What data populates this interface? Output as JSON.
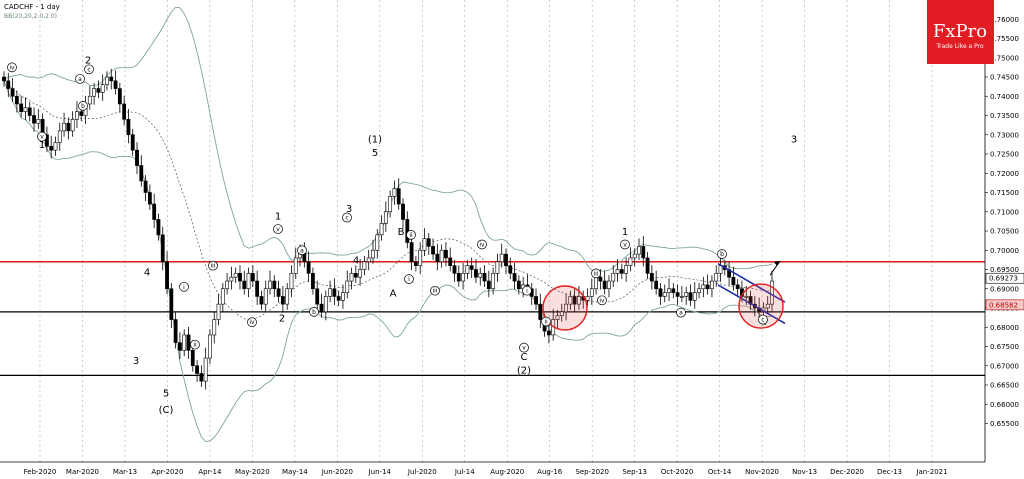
{
  "chart_data": {
    "type": "candlestick",
    "title": "CADCHF - 1 day",
    "indicator_label": "BB(20,20,2.0,2.0)",
    "y_range": [
      0.645,
      0.765
    ],
    "y_ticks": [
      "0.76000",
      "0.75500",
      "0.75000",
      "0.74500",
      "0.74000",
      "0.73500",
      "0.73000",
      "0.72500",
      "0.72000",
      "0.71500",
      "0.71000",
      "0.70500",
      "0.70000",
      "0.69500",
      "0.69000",
      "0.68500",
      "0.68000",
      "0.67500",
      "0.67000",
      "0.66500",
      "0.66000",
      "0.65500"
    ],
    "x_labels": [
      "Feb-2020",
      "Mar-2020",
      "Mar-13",
      "Apr-2020",
      "Apr-14",
      "May-2020",
      "May-14",
      "Jun-2020",
      "Jun-14",
      "Jul-2020",
      "Jul-14",
      "Aug-2020",
      "Aug-16",
      "Sep-2020",
      "Sep-13",
      "Oct-2020",
      "Oct-14",
      "Nov-2020",
      "Nov-13",
      "Dec-2020",
      "Dec-13",
      "Jan-2021"
    ],
    "current_price": "0.69273",
    "support_price": "0.68582",
    "horizontal_lines": [
      {
        "price": 0.697,
        "color": "#e00000"
      },
      {
        "price": 0.684,
        "color": "#000000"
      },
      {
        "price": 0.6675,
        "color": "#000000"
      }
    ],
    "closes": [
      0.744,
      0.742,
      0.74,
      0.738,
      0.736,
      0.737,
      0.735,
      0.733,
      0.734,
      0.73,
      0.727,
      0.726,
      0.728,
      0.731,
      0.733,
      0.731,
      0.734,
      0.736,
      0.735,
      0.738,
      0.74,
      0.742,
      0.741,
      0.743,
      0.745,
      0.744,
      0.742,
      0.738,
      0.734,
      0.73,
      0.726,
      0.722,
      0.718,
      0.715,
      0.712,
      0.708,
      0.704,
      0.697,
      0.69,
      0.682,
      0.676,
      0.674,
      0.678,
      0.674,
      0.67,
      0.668,
      0.666,
      0.672,
      0.678,
      0.682,
      0.686,
      0.69,
      0.692,
      0.693,
      0.694,
      0.692,
      0.69,
      0.694,
      0.692,
      0.688,
      0.686,
      0.69,
      0.692,
      0.69,
      0.688,
      0.686,
      0.69,
      0.694,
      0.698,
      0.7,
      0.697,
      0.694,
      0.69,
      0.686,
      0.684,
      0.688,
      0.69,
      0.688,
      0.687,
      0.689,
      0.692,
      0.694,
      0.693,
      0.695,
      0.697,
      0.698,
      0.7,
      0.704,
      0.707,
      0.71,
      0.714,
      0.716,
      0.712,
      0.708,
      0.702,
      0.697,
      0.696,
      0.7,
      0.703,
      0.701,
      0.699,
      0.697,
      0.7,
      0.698,
      0.696,
      0.694,
      0.692,
      0.694,
      0.696,
      0.695,
      0.693,
      0.694,
      0.692,
      0.69,
      0.694,
      0.697,
      0.699,
      0.696,
      0.694,
      0.692,
      0.69,
      0.691,
      0.69,
      0.688,
      0.686,
      0.682,
      0.679,
      0.678,
      0.682,
      0.683,
      0.684,
      0.686,
      0.688,
      0.686,
      0.688,
      0.687,
      0.688,
      0.69,
      0.693,
      0.692,
      0.69,
      0.692,
      0.694,
      0.695,
      0.694,
      0.696,
      0.698,
      0.699,
      0.701,
      0.698,
      0.694,
      0.692,
      0.69,
      0.688,
      0.689,
      0.69,
      0.689,
      0.688,
      0.688,
      0.689,
      0.687,
      0.689,
      0.69,
      0.691,
      0.69,
      0.692,
      0.694,
      0.696,
      0.695,
      0.693,
      0.691,
      0.69,
      0.688,
      0.688,
      0.686,
      0.685,
      0.684,
      0.685,
      0.686,
      0.692
    ],
    "wave_labels": [
      {
        "text": "2",
        "x": 88,
        "price": 0.7485
      },
      {
        "text": "1",
        "x": 42,
        "price": 0.7265
      },
      {
        "text": "4",
        "x": 147,
        "price": 0.6935
      },
      {
        "text": "3",
        "x": 136,
        "price": 0.6705
      },
      {
        "text": "5",
        "x": 166,
        "price": 0.662
      },
      {
        "text": "(C)",
        "x": 166,
        "price": 0.6577
      },
      {
        "text": "1",
        "x": 278,
        "price": 0.708
      },
      {
        "text": "2",
        "x": 282,
        "price": 0.6815
      },
      {
        "text": "3",
        "x": 349,
        "price": 0.71
      },
      {
        "text": "4",
        "x": 356,
        "price": 0.6965
      },
      {
        "text": "(1)",
        "x": 375,
        "price": 0.728
      },
      {
        "text": "5",
        "x": 375,
        "price": 0.7245
      },
      {
        "text": "B",
        "x": 401,
        "price": 0.704
      },
      {
        "text": "A",
        "x": 393,
        "price": 0.688
      },
      {
        "text": "C",
        "x": 524,
        "price": 0.6715
      },
      {
        "text": "(2)",
        "x": 524,
        "price": 0.668
      },
      {
        "text": "1",
        "x": 625,
        "price": 0.704
      },
      {
        "text": "2",
        "x": 764,
        "price": 0.6807
      },
      {
        "text": "3",
        "x": 794,
        "price": 0.728
      }
    ],
    "circled_labels": [
      {
        "text": "iv",
        "x": 12,
        "price": 0.7475
      },
      {
        "text": "v",
        "x": 42,
        "price": 0.7295
      },
      {
        "text": "a",
        "x": 80,
        "price": 0.7445
      },
      {
        "text": "c",
        "x": 89,
        "price": 0.747
      },
      {
        "text": "b",
        "x": 83,
        "price": 0.7375
      },
      {
        "text": "i",
        "x": 184,
        "price": 0.6905
      },
      {
        "text": "ii",
        "x": 195,
        "price": 0.6755
      },
      {
        "text": "iii",
        "x": 213,
        "price": 0.696
      },
      {
        "text": "iv",
        "x": 252,
        "price": 0.6813
      },
      {
        "text": "v",
        "x": 278,
        "price": 0.7055
      },
      {
        "text": "a",
        "x": 302,
        "price": 0.7
      },
      {
        "text": "b",
        "x": 314,
        "price": 0.684
      },
      {
        "text": "c",
        "x": 347,
        "price": 0.7085
      },
      {
        "text": "i",
        "x": 409,
        "price": 0.6925
      },
      {
        "text": "ii",
        "x": 411,
        "price": 0.704
      },
      {
        "text": "iii",
        "x": 435,
        "price": 0.6895
      },
      {
        "text": "iv",
        "x": 482,
        "price": 0.7015
      },
      {
        "text": "v",
        "x": 524,
        "price": 0.6747
      },
      {
        "text": "i",
        "x": 527,
        "price": 0.6895
      },
      {
        "text": "ii",
        "x": 546,
        "price": 0.6815
      },
      {
        "text": "iii",
        "x": 596,
        "price": 0.694
      },
      {
        "text": "iv",
        "x": 602,
        "price": 0.687
      },
      {
        "text": "v",
        "x": 625,
        "price": 0.7015
      },
      {
        "text": "a",
        "x": 681,
        "price": 0.6838
      },
      {
        "text": "b",
        "x": 722,
        "price": 0.699
      },
      {
        "text": "c",
        "x": 763,
        "price": 0.682
      }
    ],
    "highlight_circles": [
      {
        "x": 565,
        "price": 0.685
      },
      {
        "x": 761,
        "price": 0.6855
      }
    ],
    "channel_lines": [
      {
        "x1": 718,
        "p1": 0.6965,
        "x2": 785,
        "p2": 0.6865
      },
      {
        "x1": 718,
        "p1": 0.691,
        "x2": 785,
        "p2": 0.681
      }
    ],
    "target_arrow": {
      "x1": 770,
      "p1": 0.6935,
      "x2": 780,
      "p2": 0.6972
    },
    "colors": {
      "up": "#ffffff",
      "down": "#000000",
      "band": "#7fa78f",
      "ma": "#555555",
      "logo_bg": "#e31b23"
    }
  },
  "logo": {
    "brand": "FxPro",
    "tagline": "Trade Like a Pro"
  }
}
